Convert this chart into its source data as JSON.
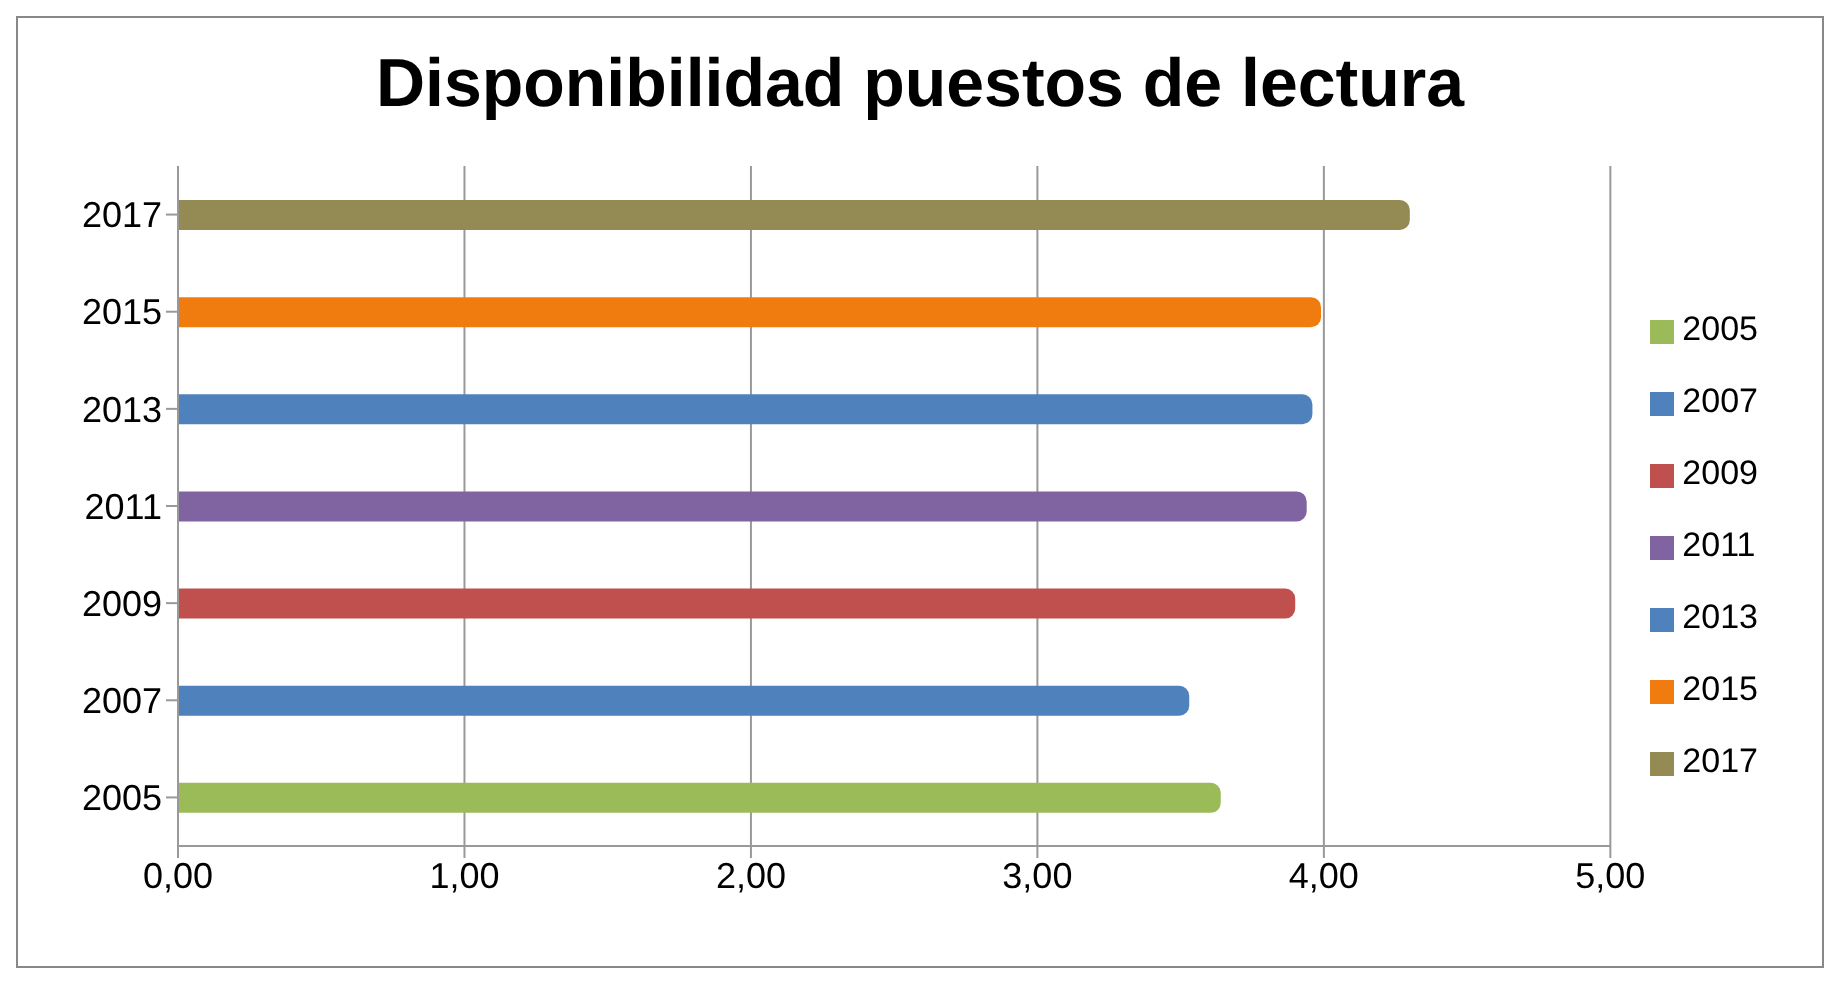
{
  "chart_data": {
    "type": "bar",
    "title": "Disponibilidad puestos de lectura",
    "orientation": "horizontal",
    "stacked": true,
    "categories": [
      "2017",
      "2015",
      "2013",
      "2011",
      "2009",
      "2007",
      "2005"
    ],
    "series": [
      {
        "name": "2005",
        "color": "#9bbb59",
        "values": [
          null,
          null,
          null,
          null,
          null,
          null,
          3.64
        ]
      },
      {
        "name": "2007",
        "color": "#4f81bd",
        "values": [
          null,
          null,
          null,
          null,
          null,
          3.53,
          null
        ]
      },
      {
        "name": "2009",
        "color": "#c0504d",
        "values": [
          null,
          null,
          null,
          null,
          3.9,
          null,
          null
        ]
      },
      {
        "name": "2011",
        "color": "#8064a2",
        "values": [
          null,
          null,
          null,
          3.94,
          null,
          null,
          null
        ]
      },
      {
        "name": "2013",
        "color": "#4f81bd",
        "values": [
          null,
          null,
          3.96,
          null,
          null,
          null,
          null
        ]
      },
      {
        "name": "2015",
        "color": "#f07c10",
        "values": [
          null,
          3.99,
          null,
          null,
          null,
          null,
          null
        ]
      },
      {
        "name": "2017",
        "color": "#948a54",
        "values": [
          4.3,
          null,
          null,
          null,
          null,
          null,
          null
        ]
      }
    ],
    "xlim": [
      0,
      5
    ],
    "xticks": [
      {
        "value": 0,
        "label": "0,00"
      },
      {
        "value": 1,
        "label": "1,00"
      },
      {
        "value": 2,
        "label": "2,00"
      },
      {
        "value": 3,
        "label": "3,00"
      },
      {
        "value": 4,
        "label": "4,00"
      },
      {
        "value": 5,
        "label": "5,00"
      }
    ],
    "grid": "x",
    "legend": "right"
  }
}
